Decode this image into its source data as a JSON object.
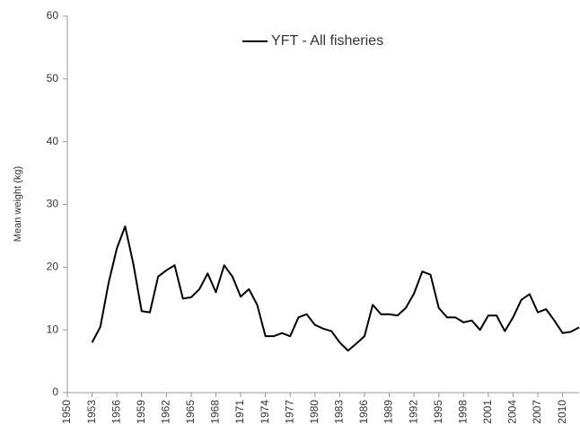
{
  "chart_data": {
    "type": "line",
    "y_label": "Mean weight (kg)",
    "x": [
      1953,
      1954,
      1955,
      1956,
      1957,
      1958,
      1959,
      1960,
      1961,
      1962,
      1963,
      1964,
      1965,
      1966,
      1967,
      1968,
      1969,
      1970,
      1971,
      1972,
      1973,
      1974,
      1975,
      1976,
      1977,
      1978,
      1979,
      1980,
      1981,
      1982,
      1983,
      1984,
      1985,
      1986,
      1987,
      1988,
      1989,
      1990,
      1991,
      1992,
      1993,
      1994,
      1995,
      1996,
      1997,
      1998,
      1999,
      2000,
      2001,
      2002,
      2003,
      2004,
      2005,
      2006,
      2007,
      2008,
      2009,
      2010,
      2011,
      2012
    ],
    "series": [
      {
        "name": "YFT - All fisheries",
        "color": "#000000",
        "values": [
          8,
          10.5,
          17.5,
          23,
          26.5,
          20.5,
          13,
          12.8,
          18.5,
          19.5,
          20.3,
          15,
          15.2,
          16.5,
          19,
          16,
          20.3,
          18.5,
          15.3,
          16.5,
          14,
          9,
          9,
          9.5,
          9,
          12,
          12.5,
          10.8,
          10.2,
          9.8,
          8,
          6.7,
          7.8,
          9,
          14,
          12.5,
          12.5,
          12.3,
          13.5,
          15.8,
          19.3,
          18.8,
          13.5,
          12,
          12,
          11.2,
          11.5,
          10,
          12.3,
          12.3,
          9.8,
          12,
          14.8,
          15.7,
          12.8,
          13.3,
          11.5,
          9.5,
          9.7,
          10.4
        ]
      }
    ],
    "xlim": [
      1950,
      2012
    ],
    "xticks": [
      1950,
      1953,
      1956,
      1959,
      1962,
      1965,
      1968,
      1971,
      1974,
      1977,
      1980,
      1983,
      1986,
      1989,
      1992,
      1995,
      1998,
      2001,
      2004,
      2007,
      2010
    ],
    "ylim": [
      0,
      60
    ],
    "yticks": [
      0,
      10,
      20,
      30,
      40,
      50,
      60
    ],
    "grid": false,
    "legend": "top"
  }
}
